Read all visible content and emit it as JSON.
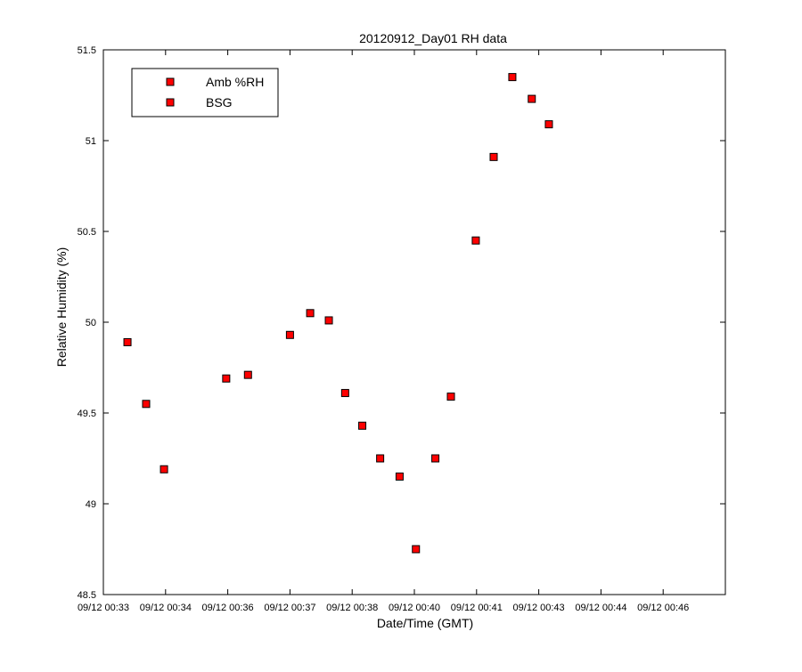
{
  "chart_data": {
    "type": "scatter",
    "title": "20120912_Day01 RH data",
    "xlabel": "Date/Time (GMT)",
    "ylabel": "Relative Humidity (%)",
    "x_type": "time",
    "xlim": [
      "2012-09-12T00:33:00",
      "2012-09-12T00:46:20"
    ],
    "ylim": [
      48.5,
      51.5
    ],
    "x_ticks": [
      {
        "value": "2012-09-12T00:33:00",
        "label": "09/12 00:33"
      },
      {
        "value": "2012-09-12T00:34:20",
        "label": "09/12 00:34"
      },
      {
        "value": "2012-09-12T00:35:40",
        "label": "09/12 00:36"
      },
      {
        "value": "2012-09-12T00:37:00",
        "label": "09/12 00:37"
      },
      {
        "value": "2012-09-12T00:38:20",
        "label": "09/12 00:38"
      },
      {
        "value": "2012-09-12T00:39:40",
        "label": "09/12 00:40"
      },
      {
        "value": "2012-09-12T00:41:00",
        "label": "09/12 00:41"
      },
      {
        "value": "2012-09-12T00:42:20",
        "label": "09/12 00:43"
      },
      {
        "value": "2012-09-12T00:43:40",
        "label": "09/12 00:44"
      },
      {
        "value": "2012-09-12T00:45:00",
        "label": "09/12 00:46"
      }
    ],
    "y_ticks": [
      {
        "value": 48.5,
        "label": "48.5"
      },
      {
        "value": 49,
        "label": "49"
      },
      {
        "value": 49.5,
        "label": "49.5"
      },
      {
        "value": 50,
        "label": "50"
      },
      {
        "value": 50.5,
        "label": "50.5"
      },
      {
        "value": 51,
        "label": "51"
      },
      {
        "value": 51.5,
        "label": "51.5"
      }
    ],
    "grid": false,
    "legend_position": "top-left",
    "series": [
      {
        "name": "Amb %RH",
        "marker": "square",
        "color": "#ff0000",
        "points": [
          {
            "x": "2012-09-12T00:33:31",
            "y": 49.89
          },
          {
            "x": "2012-09-12T00:33:55",
            "y": 49.55
          },
          {
            "x": "2012-09-12T00:34:18",
            "y": 49.19
          },
          {
            "x": "2012-09-12T00:35:38",
            "y": 49.69
          },
          {
            "x": "2012-09-12T00:36:06",
            "y": 49.71
          },
          {
            "x": "2012-09-12T00:37:00",
            "y": 49.93
          },
          {
            "x": "2012-09-12T00:37:26",
            "y": 50.05
          },
          {
            "x": "2012-09-12T00:37:50",
            "y": 50.01
          },
          {
            "x": "2012-09-12T00:38:11",
            "y": 49.61
          },
          {
            "x": "2012-09-12T00:38:33",
            "y": 49.43
          },
          {
            "x": "2012-09-12T00:38:56",
            "y": 49.25
          },
          {
            "x": "2012-09-12T00:39:21",
            "y": 49.15
          },
          {
            "x": "2012-09-12T00:39:42",
            "y": 48.75
          },
          {
            "x": "2012-09-12T00:40:07",
            "y": 49.25
          },
          {
            "x": "2012-09-12T00:40:27",
            "y": 49.59
          },
          {
            "x": "2012-09-12T00:40:59",
            "y": 50.45
          },
          {
            "x": "2012-09-12T00:41:22",
            "y": 50.91
          },
          {
            "x": "2012-09-12T00:41:46",
            "y": 51.35
          },
          {
            "x": "2012-09-12T00:42:11",
            "y": 51.23
          },
          {
            "x": "2012-09-12T00:42:33",
            "y": 51.09
          }
        ]
      },
      {
        "name": "BSG",
        "marker": "square",
        "color": "#ff0000",
        "points": []
      }
    ]
  }
}
